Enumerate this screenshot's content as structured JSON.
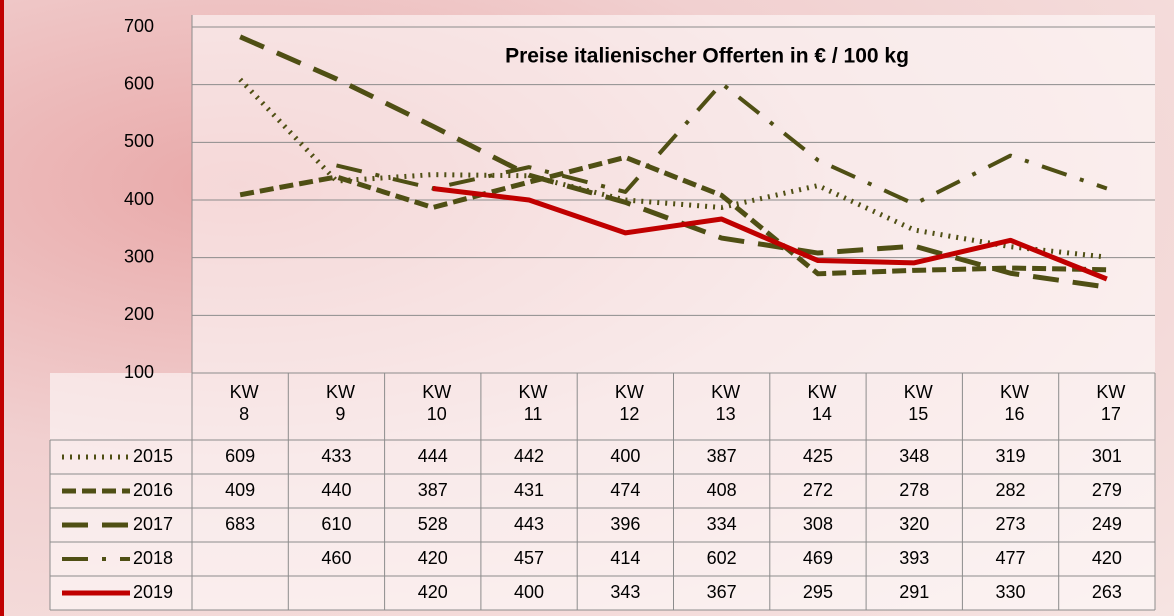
{
  "chart_data": {
    "type": "line",
    "title": "Preise italienischer Offerten in € / 100 kg",
    "categories": [
      "KW 8",
      "KW 9",
      "KW 10",
      "KW 11",
      "KW 12",
      "KW 13",
      "KW 14",
      "KW 15",
      "KW 16",
      "KW 17"
    ],
    "series": [
      {
        "name": "2015",
        "color": "#4f4f14",
        "style": "dotted",
        "values": [
          609,
          433,
          444,
          442,
          400,
          387,
          425,
          348,
          319,
          301
        ]
      },
      {
        "name": "2016",
        "color": "#4f4f14",
        "style": "dashed",
        "values": [
          409,
          440,
          387,
          431,
          474,
          408,
          272,
          278,
          282,
          279
        ]
      },
      {
        "name": "2017",
        "color": "#4f4f14",
        "style": "long-dash",
        "values": [
          683,
          610,
          528,
          443,
          396,
          334,
          308,
          320,
          273,
          249
        ]
      },
      {
        "name": "2018",
        "color": "#4f4f14",
        "style": "dash-dot",
        "values": [
          null,
          460,
          420,
          457,
          414,
          602,
          469,
          393,
          477,
          420
        ]
      },
      {
        "name": "2019",
        "color": "#c00000",
        "style": "solid",
        "values": [
          null,
          null,
          420,
          400,
          343,
          367,
          295,
          291,
          330,
          263
        ]
      }
    ],
    "ylim": [
      100,
      700
    ],
    "yticks": [
      100,
      200,
      300,
      400,
      500,
      600,
      700
    ],
    "grid": true
  }
}
